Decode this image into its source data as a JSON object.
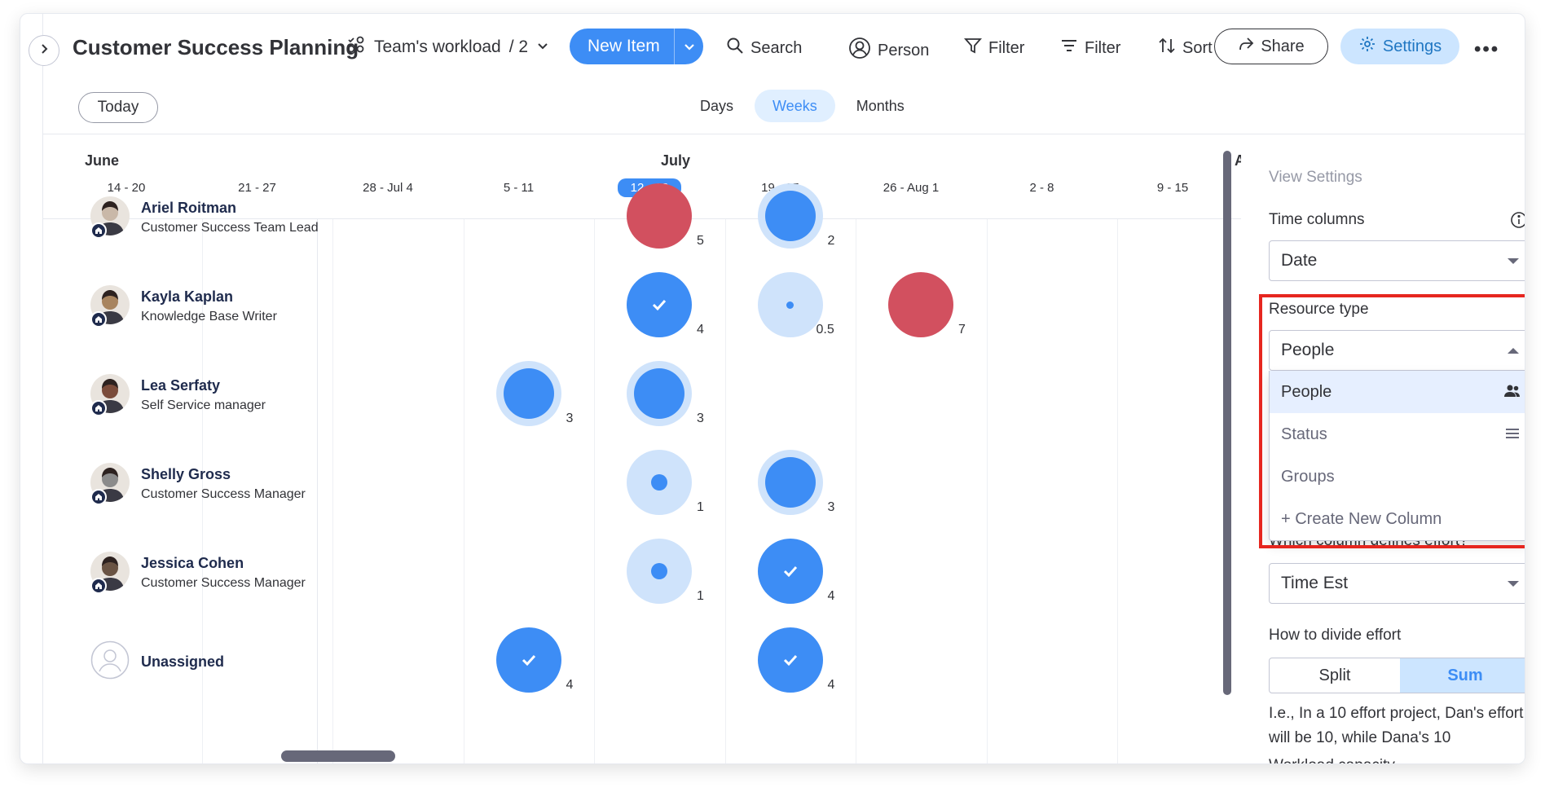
{
  "header": {
    "title": "Customer Success Planning",
    "view_name": "Team's workload",
    "view_count": "/ 2",
    "new_item_label": "New Item",
    "search_label": "Search",
    "person_label": "Person",
    "filter_label": "Filter",
    "filter2_label": "Filter",
    "sort_label": "Sort",
    "share_label": "Share",
    "settings_label": "Settings"
  },
  "toolbar": {
    "today_label": "Today",
    "scales": [
      "Days",
      "Weeks",
      "Months"
    ],
    "active_scale": "Weeks"
  },
  "timeline": {
    "months": [
      {
        "label": "June"
      },
      {
        "label": "July"
      },
      {
        "label": "A"
      }
    ],
    "weeks": [
      "14 - 20",
      "21 - 27",
      "28 - Jul 4",
      "5 - 11",
      "12 - 18",
      "19 - 25",
      "26 - Aug 1",
      "2 - 8",
      "9 - 15"
    ],
    "current_week": "12 - 18"
  },
  "people": [
    {
      "name": "Ariel Roitman",
      "role": "Customer Success Team Lead",
      "bubbles": [
        {
          "week": "12 - 18",
          "value": "5",
          "state": "overloaded"
        },
        {
          "week": "19 - 25",
          "value": "2",
          "state": "partial-large"
        }
      ]
    },
    {
      "name": "Kayla Kaplan",
      "role": "Knowledge Base Writer",
      "bubbles": [
        {
          "week": "12 - 18",
          "value": "4",
          "state": "full"
        },
        {
          "week": "19 - 25",
          "value": "0.5",
          "state": "partial-tiny"
        },
        {
          "week": "26 - Aug 1",
          "value": "7",
          "state": "overloaded"
        }
      ]
    },
    {
      "name": "Lea Serfaty",
      "role": "Self Service manager",
      "bubbles": [
        {
          "week": "5 - 11",
          "value": "3",
          "state": "partial-large"
        },
        {
          "week": "12 - 18",
          "value": "3",
          "state": "partial-large"
        }
      ]
    },
    {
      "name": "Shelly Gross",
      "role": "Customer Success Manager",
      "bubbles": [
        {
          "week": "12 - 18",
          "value": "1",
          "state": "partial-small"
        },
        {
          "week": "19 - 25",
          "value": "3",
          "state": "partial-large"
        }
      ]
    },
    {
      "name": "Jessica Cohen",
      "role": "Customer Success Manager",
      "bubbles": [
        {
          "week": "12 - 18",
          "value": "1",
          "state": "partial-small"
        },
        {
          "week": "19 - 25",
          "value": "4",
          "state": "full"
        }
      ]
    },
    {
      "name": "Unassigned",
      "role": "",
      "bubbles": [
        {
          "week": "5 - 11",
          "value": "4",
          "state": "full"
        },
        {
          "week": "19 - 25",
          "value": "4",
          "state": "full"
        }
      ]
    }
  ],
  "settings_panel": {
    "title": "View Settings",
    "time_columns_label": "Time columns",
    "time_columns_value": "Date",
    "resource_type_label": "Resource type",
    "resource_type_value": "People",
    "resource_type_options": [
      "People",
      "Status",
      "Groups",
      "+ Create New Column"
    ],
    "effort_label": "Which column defines effort?",
    "effort_value": "Time Est",
    "divide_label": "How to divide effort",
    "divide_options": [
      "Split",
      "Sum"
    ],
    "divide_active": "Sum",
    "divide_explain": "I.e., In a 10 effort project, Dan's effort will be 10, while Dana's 10",
    "cut_label": "Workload capacity"
  },
  "colors": {
    "primary": "#3d8df5",
    "light": "#cfe3fb",
    "overloaded": "#d2505f",
    "highlight": "#e6261f"
  }
}
